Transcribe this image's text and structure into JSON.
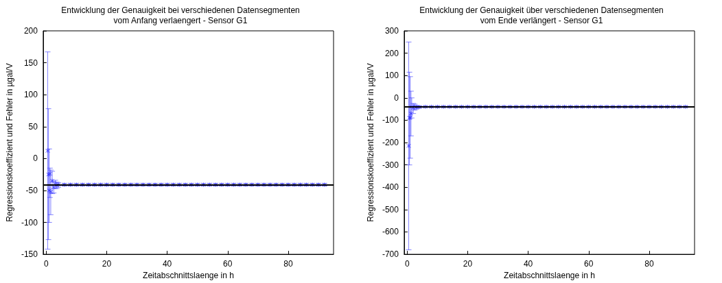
{
  "chart_data": [
    {
      "type": "scatter",
      "title": "Entwicklung der Genauigkeit bei verschiedenen Datensegmenten",
      "subtitle": "vom Anfang verlaengert - Sensor G1",
      "xlabel": "Zeitabschnittslaenge in h",
      "ylabel": "Regressionskoeffizient und Fehler in µgal/V",
      "xlim": [
        -1,
        95
      ],
      "ylim": [
        -150,
        200
      ],
      "xticks": [
        0,
        20,
        40,
        60,
        80
      ],
      "yticks": [
        -150,
        -100,
        -50,
        0,
        50,
        100,
        150,
        200
      ],
      "marker": "cross",
      "grid": false,
      "legend": false,
      "x": [
        0.5,
        0.75,
        1,
        1.25,
        1.5,
        2,
        2.5,
        3,
        3.5,
        4,
        6,
        8,
        10,
        12,
        14,
        16,
        18,
        20,
        22,
        24,
        26,
        28,
        30,
        32,
        34,
        36,
        38,
        40,
        42,
        44,
        46,
        48,
        50,
        52,
        54,
        56,
        58,
        60,
        62,
        64,
        66,
        68,
        70,
        72,
        74,
        76,
        78,
        80,
        82,
        84,
        86,
        88,
        90,
        92
      ],
      "series": [
        {
          "color": "#3333ff",
          "values": [
            12,
            -25,
            -50,
            -24,
            -52,
            -35,
            -45,
            -40,
            -42,
            -41,
            -41,
            -41,
            -41,
            -41,
            -41,
            -41,
            -41,
            -41,
            -41,
            -41,
            -41,
            -41,
            -41,
            -41,
            -41,
            -41,
            -41,
            -41,
            -41,
            -41,
            -41,
            -41,
            -41,
            -41,
            -41,
            -41,
            -41,
            -41,
            -41,
            -41,
            -41,
            -41,
            -41,
            -41,
            -41,
            -41,
            -41,
            -41,
            -41,
            -41,
            -41,
            -41,
            -41,
            -41
          ],
          "errors": [
            [
              -142,
              167
            ],
            [
              -127,
              78
            ],
            [
              -100,
              15
            ],
            [
              -61,
              -15
            ],
            [
              -88,
              -18
            ],
            [
              -55,
              -20
            ],
            [
              -54,
              -36
            ],
            [
              -47,
              -34
            ],
            [
              -47,
              -37
            ],
            [
              -45,
              -38
            ],
            [
              -43,
              -39
            ],
            [
              -43,
              -39
            ],
            [
              -43,
              -39
            ],
            [
              -43,
              -39
            ],
            [
              -43,
              -39
            ],
            [
              -43,
              -39
            ],
            [
              -43,
              -39
            ],
            [
              -43,
              -39
            ],
            [
              -43,
              -39
            ],
            [
              -43,
              -39
            ],
            [
              -43,
              -39
            ],
            [
              -43,
              -39
            ],
            [
              -43,
              -39
            ],
            [
              -43,
              -39
            ],
            [
              -43,
              -39
            ],
            [
              -43,
              -39
            ],
            [
              -43,
              -39
            ],
            [
              -43,
              -39
            ],
            [
              -43,
              -39
            ],
            [
              -43,
              -39
            ],
            [
              -43,
              -39
            ],
            [
              -43,
              -39
            ],
            [
              -43,
              -39
            ],
            [
              -43,
              -39
            ],
            [
              -43,
              -39
            ],
            [
              -43,
              -39
            ],
            [
              -43,
              -39
            ],
            [
              -43,
              -39
            ],
            [
              -43,
              -39
            ],
            [
              -43,
              -39
            ],
            [
              -43,
              -39
            ],
            [
              -43,
              -39
            ],
            [
              -43,
              -39
            ],
            [
              -43,
              -39
            ],
            [
              -43,
              -39
            ],
            [
              -43,
              -39
            ],
            [
              -43,
              -39
            ],
            [
              -43,
              -39
            ],
            [
              -43,
              -39
            ],
            [
              -43,
              -39
            ],
            [
              -43,
              -39
            ],
            [
              -43,
              -39
            ],
            [
              -43,
              -39
            ],
            [
              -43,
              -39
            ]
          ]
        }
      ],
      "ref_lines": [
        {
          "axis": "y",
          "value": -41,
          "color": "#000000"
        }
      ]
    },
    {
      "type": "scatter",
      "title": "Entwicklung der Genauigkeit über verschiedenen Datensegmenten",
      "subtitle": "vom Ende verlängert - Sensor G1",
      "xlabel": "Zeitabschnittslaenge in h",
      "ylabel": "Regressionskoeffizient und Fehler in µgal/V",
      "xlim": [
        -1,
        95
      ],
      "ylim": [
        -700,
        300
      ],
      "xticks": [
        0,
        20,
        40,
        60,
        80
      ],
      "yticks": [
        -700,
        -600,
        -500,
        -400,
        -300,
        -200,
        -100,
        0,
        100,
        200,
        300
      ],
      "marker": "cross",
      "grid": false,
      "legend": false,
      "x": [
        0.5,
        0.75,
        1,
        1.25,
        1.5,
        2,
        2.5,
        3,
        4,
        6,
        8,
        10,
        12,
        14,
        16,
        18,
        20,
        22,
        24,
        26,
        28,
        30,
        32,
        34,
        36,
        38,
        40,
        42,
        44,
        46,
        48,
        50,
        52,
        54,
        56,
        58,
        60,
        62,
        64,
        66,
        68,
        70,
        72,
        74,
        76,
        78,
        80,
        82,
        84,
        86,
        88,
        90,
        92
      ],
      "series": [
        {
          "color": "#3333ff",
          "values": [
            -215,
            -90,
            -88,
            -70,
            -40,
            -45,
            -40,
            -42,
            -41,
            -40,
            -40,
            -40,
            -40,
            -40,
            -40,
            -40,
            -40,
            -40,
            -40,
            -40,
            -40,
            -40,
            -40,
            -40,
            -40,
            -40,
            -40,
            -40,
            -40,
            -40,
            -40,
            -40,
            -40,
            -40,
            -40,
            -40,
            -40,
            -40,
            -40,
            -40,
            -40,
            -40,
            -40,
            -40,
            -40,
            -40,
            -40,
            -40,
            -40,
            -40,
            -40,
            -40,
            -40
          ],
          "errors": [
            [
              -680,
              250
            ],
            [
              -300,
              115
            ],
            [
              -270,
              95
            ],
            [
              -170,
              30
            ],
            [
              -90,
              0
            ],
            [
              -70,
              -25
            ],
            [
              -55,
              -28
            ],
            [
              -50,
              -34
            ],
            [
              -46,
              -36
            ],
            [
              -43,
              -37
            ],
            [
              -43,
              -37
            ],
            [
              -43,
              -37
            ],
            [
              -43,
              -37
            ],
            [
              -43,
              -37
            ],
            [
              -43,
              -37
            ],
            [
              -43,
              -37
            ],
            [
              -43,
              -37
            ],
            [
              -43,
              -37
            ],
            [
              -43,
              -37
            ],
            [
              -43,
              -37
            ],
            [
              -43,
              -37
            ],
            [
              -43,
              -37
            ],
            [
              -43,
              -37
            ],
            [
              -43,
              -37
            ],
            [
              -43,
              -37
            ],
            [
              -43,
              -37
            ],
            [
              -43,
              -37
            ],
            [
              -43,
              -37
            ],
            [
              -43,
              -37
            ],
            [
              -43,
              -37
            ],
            [
              -43,
              -37
            ],
            [
              -43,
              -37
            ],
            [
              -43,
              -37
            ],
            [
              -43,
              -37
            ],
            [
              -43,
              -37
            ],
            [
              -43,
              -37
            ],
            [
              -43,
              -37
            ],
            [
              -43,
              -37
            ],
            [
              -43,
              -37
            ],
            [
              -43,
              -37
            ],
            [
              -43,
              -37
            ],
            [
              -43,
              -37
            ],
            [
              -43,
              -37
            ],
            [
              -43,
              -37
            ],
            [
              -43,
              -37
            ],
            [
              -43,
              -37
            ],
            [
              -43,
              -37
            ],
            [
              -43,
              -37
            ],
            [
              -43,
              -37
            ],
            [
              -43,
              -37
            ],
            [
              -43,
              -37
            ],
            [
              -43,
              -37
            ],
            [
              -43,
              -37
            ]
          ]
        }
      ],
      "ref_lines": [
        {
          "axis": "y",
          "value": -40,
          "color": "#000000"
        }
      ]
    }
  ]
}
